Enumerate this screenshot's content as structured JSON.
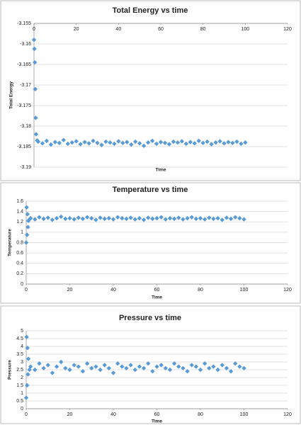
{
  "chart_data": [
    {
      "type": "scatter",
      "title": "Total Energy vs time",
      "xlabel": "Time",
      "ylabel": "Total Energy",
      "color": "#5b9bd5",
      "x": [
        0,
        0.2,
        0.4,
        0.6,
        0.8,
        1,
        1.5,
        2,
        4,
        6,
        8,
        10,
        12,
        14,
        16,
        18,
        20,
        22,
        24,
        26,
        28,
        30,
        32,
        34,
        36,
        38,
        40,
        42,
        44,
        46,
        48,
        50,
        52,
        54,
        56,
        58,
        60,
        62,
        64,
        66,
        68,
        70,
        72,
        74,
        76,
        78,
        80,
        82,
        84,
        86,
        88,
        90,
        92,
        94,
        96,
        98,
        100
      ],
      "values": [
        -3.159,
        -3.1612,
        -3.1645,
        -3.171,
        -3.178,
        -3.182,
        -3.1835,
        -3.1838,
        -3.1842,
        -3.1836,
        -3.1845,
        -3.1839,
        -3.1841,
        -3.1834,
        -3.1843,
        -3.184,
        -3.1837,
        -3.1844,
        -3.1839,
        -3.1842,
        -3.1836,
        -3.1841,
        -3.1846,
        -3.1838,
        -3.184,
        -3.1843,
        -3.1837,
        -3.1841,
        -3.1839,
        -3.1845,
        -3.1838,
        -3.1842,
        -3.1848,
        -3.184,
        -3.1836,
        -3.1843,
        -3.1839,
        -3.1841,
        -3.1844,
        -3.1838,
        -3.184,
        -3.1837,
        -3.1843,
        -3.1839,
        -3.1842,
        -3.1836,
        -3.1841,
        -3.1838,
        -3.1844,
        -3.184,
        -3.1837,
        -3.1842,
        -3.1839,
        -3.1841,
        -3.1838,
        -3.1843,
        -3.184
      ],
      "xlim": [
        0,
        120
      ],
      "ylim": [
        -3.19,
        -3.155
      ],
      "xticks": [
        0,
        20,
        40,
        60,
        80,
        100,
        120
      ],
      "yticks": [
        -3.155,
        -3.16,
        -3.165,
        -3.17,
        -3.175,
        -3.18,
        -3.185,
        -3.19
      ],
      "grid": true
    },
    {
      "type": "scatter",
      "title": "Temperature vs time",
      "xlabel": "Time",
      "ylabel": "Temperature",
      "color": "#5b9bd5",
      "x": [
        0,
        0.2,
        0.4,
        0.6,
        0.8,
        1,
        1.5,
        2,
        4,
        6,
        8,
        10,
        12,
        14,
        16,
        18,
        20,
        22,
        24,
        26,
        28,
        30,
        32,
        34,
        36,
        38,
        40,
        42,
        44,
        46,
        48,
        50,
        52,
        54,
        56,
        58,
        60,
        62,
        64,
        66,
        68,
        70,
        72,
        74,
        76,
        78,
        80,
        82,
        84,
        86,
        88,
        90,
        92,
        94,
        96,
        98,
        100
      ],
      "values": [
        0.8,
        1.48,
        0.95,
        1.35,
        1.1,
        1.22,
        1.25,
        1.27,
        1.25,
        1.29,
        1.26,
        1.28,
        1.24,
        1.27,
        1.3,
        1.26,
        1.27,
        1.25,
        1.28,
        1.26,
        1.29,
        1.27,
        1.24,
        1.28,
        1.26,
        1.27,
        1.25,
        1.29,
        1.27,
        1.26,
        1.28,
        1.25,
        1.27,
        1.24,
        1.28,
        1.26,
        1.27,
        1.29,
        1.25,
        1.27,
        1.26,
        1.28,
        1.25,
        1.27,
        1.29,
        1.26,
        1.27,
        1.25,
        1.28,
        1.26,
        1.27,
        1.24,
        1.28,
        1.26,
        1.29,
        1.27,
        1.25
      ],
      "xlim": [
        0,
        120
      ],
      "ylim": [
        0,
        1.6
      ],
      "xticks": [
        0,
        20,
        40,
        60,
        80,
        100,
        120
      ],
      "yticks": [
        0,
        0.2,
        0.4,
        0.6,
        0.8,
        1,
        1.2,
        1.4,
        1.6
      ],
      "grid": true
    },
    {
      "type": "scatter",
      "title": "Pressure vs time",
      "xlabel": "Time",
      "ylabel": "Pressure",
      "color": "#5b9bd5",
      "x": [
        0,
        0.2,
        0.4,
        0.6,
        0.8,
        1,
        1.5,
        2,
        4,
        6,
        8,
        10,
        12,
        14,
        16,
        18,
        20,
        22,
        24,
        26,
        28,
        30,
        32,
        34,
        36,
        38,
        40,
        42,
        44,
        46,
        48,
        50,
        52,
        54,
        56,
        58,
        60,
        62,
        64,
        66,
        68,
        70,
        72,
        74,
        76,
        78,
        80,
        82,
        84,
        86,
        88,
        90,
        92,
        94,
        96,
        98,
        100
      ],
      "values": [
        0.7,
        4.6,
        1.5,
        3.9,
        2.2,
        3.2,
        2.5,
        2.7,
        2.5,
        2.9,
        2.6,
        2.8,
        2.3,
        2.7,
        3.0,
        2.6,
        2.5,
        2.8,
        2.7,
        2.4,
        2.9,
        2.6,
        2.7,
        2.5,
        2.8,
        2.6,
        2.3,
        2.9,
        2.7,
        2.6,
        2.8,
        2.5,
        2.7,
        2.6,
        2.9,
        2.4,
        2.7,
        2.8,
        2.6,
        2.5,
        2.9,
        2.7,
        2.6,
        2.4,
        2.8,
        2.7,
        2.5,
        2.9,
        2.6,
        2.7,
        2.5,
        2.8,
        2.6,
        2.4,
        2.9,
        2.7,
        2.6
      ],
      "xlim": [
        0,
        120
      ],
      "ylim": [
        0,
        5
      ],
      "xticks": [
        0,
        20,
        40,
        60,
        80,
        100,
        120
      ],
      "yticks": [
        0,
        0.5,
        1,
        1.5,
        2,
        2.5,
        3,
        3.5,
        4,
        4.5,
        5
      ],
      "grid": true
    }
  ]
}
